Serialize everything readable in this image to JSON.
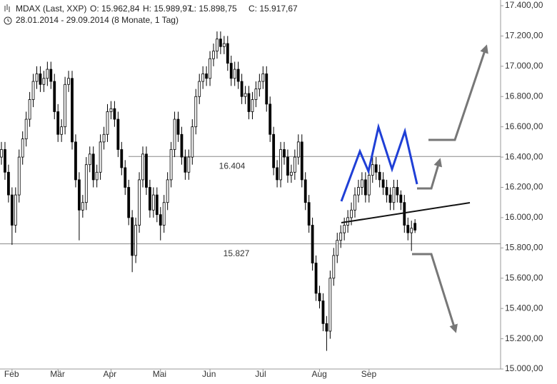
{
  "chart_data": {
    "type": "candlestick",
    "title": "MDAX (Last, XXP)",
    "ohlc_labels": [
      "O: 15.962,84",
      "H: 15.989,97",
      "L: 15.898,75",
      "C: 15.917,67"
    ],
    "subtitle": "28.01.2014 - 29.09.2014 (8 Monate, 1 Tag)",
    "categories": [
      null,
      null,
      null,
      "Feb",
      null,
      null,
      null,
      null,
      null,
      null,
      null,
      null,
      null,
      null,
      null,
      null,
      "Mär",
      null,
      null,
      null,
      null,
      null,
      null,
      null,
      null,
      null,
      null,
      null,
      null,
      null,
      null,
      "Apr",
      null,
      null,
      null,
      null,
      null,
      null,
      null,
      null,
      null,
      null,
      null,
      null,
      null,
      "Mai",
      null,
      null,
      null,
      null,
      null,
      null,
      null,
      null,
      null,
      null,
      null,
      null,
      null,
      "Jun",
      null,
      null,
      null,
      null,
      null,
      null,
      null,
      null,
      null,
      null,
      null,
      null,
      null,
      null,
      "Jul",
      null,
      null,
      null,
      null,
      null,
      null,
      null,
      null,
      null,
      null,
      null,
      null,
      null,
      null,
      null,
      "Aug",
      null,
      null,
      null,
      null,
      null,
      null,
      null,
      null,
      null,
      null,
      null,
      null,
      null,
      "Sep",
      null,
      null,
      null,
      null,
      null,
      null,
      null,
      null,
      null,
      null,
      null,
      null,
      null
    ],
    "open": [
      16400,
      16450,
      16300,
      16150,
      15950,
      16150,
      16400,
      16520,
      16650,
      16780,
      16900,
      16950,
      16880,
      16920,
      16980,
      16900,
      16700,
      16550,
      16600,
      16880,
      16920,
      16500,
      16250,
      16050,
      16100,
      16350,
      16420,
      16250,
      16300,
      16500,
      16550,
      16700,
      16720,
      16650,
      16450,
      16330,
      16200,
      16000,
      15750,
      15950,
      16250,
      16420,
      16200,
      16050,
      16150,
      16020,
      15950,
      16100,
      16250,
      16450,
      16650,
      16550,
      16400,
      16300,
      16400,
      16600,
      16800,
      16900,
      16950,
      16920,
      17050,
      17100,
      17180,
      17130,
      17150,
      17020,
      16920,
      16980,
      16900,
      16800,
      16820,
      16700,
      16780,
      16850,
      16900,
      16950,
      16750,
      16550,
      16330,
      16250,
      16450,
      16400,
      16280,
      16300,
      16400,
      16500,
      16250,
      16100,
      15950,
      15700,
      15500,
      15450,
      15300,
      15250,
      15600,
      15750,
      15850,
      15900,
      15950,
      16000,
      16050,
      16150,
      16200,
      16250,
      16150,
      16280,
      16350,
      16300,
      16250,
      16200,
      16150,
      16100,
      16200,
      16150,
      16100,
      15950,
      15900,
      15962.84
    ],
    "high": [
      16500,
      16500,
      16350,
      16200,
      16200,
      16450,
      16570,
      16700,
      16830,
      16950,
      17000,
      17000,
      16970,
      17030,
      17030,
      16950,
      16750,
      16650,
      16930,
      16970,
      16970,
      16550,
      16300,
      16150,
      16400,
      16470,
      16470,
      16350,
      16550,
      16600,
      16750,
      16770,
      16770,
      16700,
      16500,
      16380,
      16250,
      16050,
      16000,
      16300,
      16470,
      16470,
      16250,
      16200,
      16200,
      16070,
      16150,
      16300,
      16500,
      16700,
      16700,
      16600,
      16450,
      16450,
      16650,
      16850,
      16950,
      17000,
      17000,
      17100,
      17150,
      17230,
      17230,
      17200,
      17200,
      17070,
      17030,
      17030,
      16950,
      16870,
      16870,
      16830,
      16900,
      16950,
      17000,
      17000,
      16800,
      16600,
      16380,
      16500,
      16500,
      16450,
      16350,
      16450,
      16550,
      16550,
      16300,
      16150,
      16000,
      15750,
      15550,
      15500,
      15350,
      15650,
      15800,
      15900,
      15950,
      16000,
      16050,
      16100,
      16200,
      16250,
      16300,
      16300,
      16330,
      16400,
      16400,
      16350,
      16300,
      16250,
      16200,
      16250,
      16250,
      16180,
      16150,
      16000,
      15980,
      15989.97
    ],
    "low": [
      16350,
      16250,
      16100,
      15820,
      15900,
      16100,
      16350,
      16470,
      16600,
      16730,
      16850,
      16830,
      16830,
      16870,
      16850,
      16650,
      16500,
      16500,
      16550,
      16830,
      16450,
      16200,
      15850,
      16000,
      16050,
      16300,
      16200,
      16200,
      16250,
      16450,
      16500,
      16650,
      16600,
      16400,
      16280,
      16150,
      15950,
      15640,
      15700,
      15900,
      16200,
      16150,
      16000,
      16000,
      15970,
      15850,
      15900,
      16050,
      16200,
      16400,
      16500,
      16350,
      16250,
      16250,
      16350,
      16550,
      16750,
      16850,
      16870,
      16870,
      17000,
      17050,
      17080,
      17080,
      16970,
      16870,
      16870,
      16850,
      16750,
      16750,
      16650,
      16650,
      16730,
      16800,
      16850,
      16700,
      16500,
      16280,
      16200,
      16200,
      16350,
      16230,
      16230,
      16250,
      16350,
      16200,
      16050,
      15900,
      15650,
      15450,
      15400,
      15250,
      15120,
      15200,
      15550,
      15700,
      15800,
      15850,
      15900,
      15950,
      16000,
      16100,
      16150,
      16100,
      16100,
      16230,
      16250,
      16200,
      16150,
      16100,
      16050,
      16050,
      16100,
      16050,
      15900,
      15850,
      15780,
      15898.75
    ],
    "close": [
      16450,
      16300,
      16150,
      15950,
      16150,
      16400,
      16520,
      16650,
      16780,
      16900,
      16950,
      16880,
      16920,
      16980,
      16900,
      16700,
      16550,
      16600,
      16880,
      16920,
      16500,
      16250,
      16050,
      16100,
      16350,
      16420,
      16250,
      16300,
      16500,
      16550,
      16700,
      16720,
      16650,
      16450,
      16330,
      16200,
      16000,
      15750,
      15950,
      16250,
      16420,
      16200,
      16050,
      16150,
      16020,
      15950,
      16100,
      16250,
      16450,
      16650,
      16550,
      16400,
      16300,
      16400,
      16600,
      16800,
      16900,
      16950,
      16920,
      17050,
      17100,
      17180,
      17130,
      17150,
      17020,
      16920,
      16980,
      16900,
      16800,
      16820,
      16700,
      16780,
      16850,
      16900,
      16950,
      16750,
      16550,
      16330,
      16250,
      16450,
      16400,
      16280,
      16300,
      16400,
      16500,
      16250,
      16100,
      15950,
      15700,
      15500,
      15450,
      15300,
      15250,
      15600,
      15750,
      15850,
      15900,
      15950,
      16000,
      16050,
      16150,
      16200,
      16250,
      16150,
      16280,
      16350,
      16300,
      16250,
      16200,
      16150,
      16100,
      16200,
      16150,
      16100,
      15950,
      15900,
      15930,
      15917.67
    ],
    "up_color": "#ffffff",
    "down_color": "#000000",
    "ylim": [
      15000,
      17400
    ],
    "yticks": [
      {
        "value": 15000,
        "label": "15.000,00"
      },
      {
        "value": 15200,
        "label": "15.200,00"
      },
      {
        "value": 15400,
        "label": "15.400,00"
      },
      {
        "value": 15600,
        "label": "15.600,00"
      },
      {
        "value": 15800,
        "label": "15.800,00"
      },
      {
        "value": 16000,
        "label": "16.000,00"
      },
      {
        "value": 16200,
        "label": "16.200,00"
      },
      {
        "value": 16400,
        "label": "16.400,00"
      },
      {
        "value": 16600,
        "label": "16.600,00"
      },
      {
        "value": 16800,
        "label": "16.800,00"
      },
      {
        "value": 17000,
        "label": "17.000,00"
      },
      {
        "value": 17200,
        "label": "17.200,00"
      },
      {
        "value": 17400,
        "label": "17.400,00"
      }
    ],
    "hlines": [
      {
        "value": 16404,
        "label": "16.404"
      },
      {
        "value": 15827,
        "label": "15.827"
      }
    ]
  }
}
